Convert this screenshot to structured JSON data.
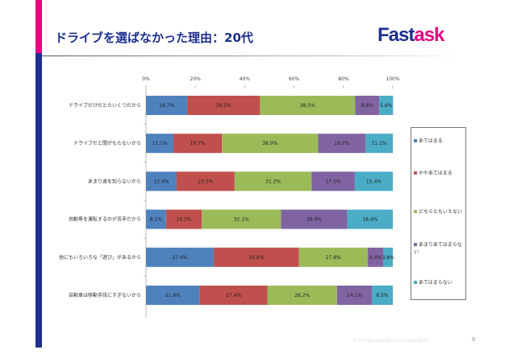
{
  "title": "ドライブを選ばなかった理由：20代",
  "logo": {
    "part1": "Fast",
    "part2": "ask"
  },
  "footer": {
    "copyright": "©2013JustSystems Corporation",
    "page": "8"
  },
  "chart_data": {
    "type": "bar",
    "orientation": "horizontal",
    "stacked": "percent",
    "xlim": [
      0,
      100
    ],
    "ticks": [
      "0%",
      "20%",
      "40%",
      "60%",
      "80%",
      "100%"
    ],
    "categories": [
      "ドライブだけだとたいくつだから",
      "ドライブだと間がもたないから",
      "あまり道を知らないから",
      "自動車を運転するのが苦手だから",
      "他にもいろいろな「遊び」があるから",
      "自動車は移動手段にすぎないから"
    ],
    "series": [
      {
        "name": "あてはまる",
        "color": "#4f81bd",
        "values": [
          16.7,
          11.1,
          12.4,
          8.1,
          27.4,
          21.8
        ]
      },
      {
        "name": "ややあてはまる",
        "color": "#c0504d",
        "values": [
          29.5,
          19.7,
          23.5,
          14.5,
          34.6,
          27.4
        ]
      },
      {
        "name": "どちらともいえない",
        "color": "#9bbb59",
        "values": [
          38.5,
          38.9,
          31.2,
          32.1,
          27.8,
          28.2
        ]
      },
      {
        "name": "あまりあてはまらない",
        "color": "#8064a2",
        "values": [
          9.8,
          19.2,
          17.5,
          26.9,
          6.4,
          14.1
        ]
      },
      {
        "name": "あてはまらない",
        "color": "#4bacc6",
        "values": [
          5.6,
          11.1,
          15.4,
          18.4,
          3.8,
          8.5
        ]
      }
    ],
    "legend": "right",
    "grid": false
  }
}
